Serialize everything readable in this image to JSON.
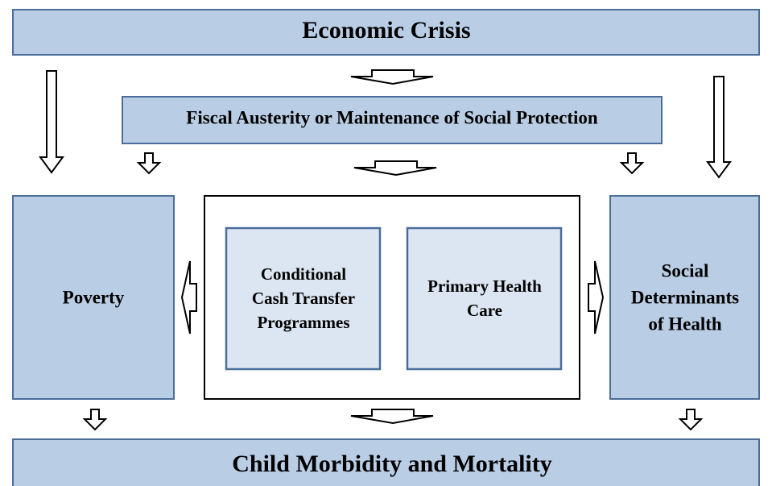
{
  "nodes": [
    {
      "label": [
        "Economic Crisis"
      ]
    },
    {
      "label": [
        "Fiscal Austerity or Maintenance of Social Protection"
      ]
    },
    {
      "label": [
        "Poverty"
      ]
    },
    {
      "label": [
        "Conditional",
        "Cash Transfer",
        "Programmes"
      ]
    },
    {
      "label": [
        "Primary Health",
        "Care"
      ]
    },
    {
      "label": [
        "Social",
        "Determinants",
        "of Health"
      ]
    },
    {
      "label": [
        "Child Morbidity and Mortality"
      ]
    }
  ]
}
